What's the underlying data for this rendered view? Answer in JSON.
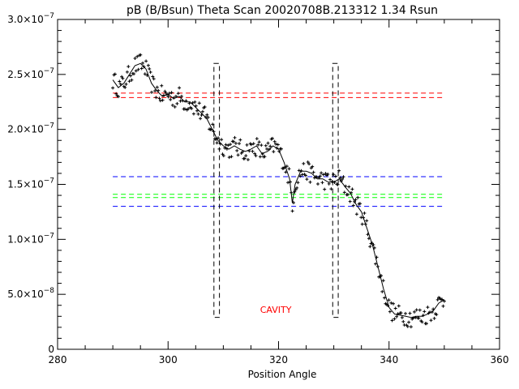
{
  "chart_data": {
    "type": "scatter",
    "title": "pB (B/Bsun) Theta Scan 20020708B.213312 1.34 Rsun",
    "xlabel": "Position Angle",
    "ylabel": "",
    "xlim": [
      280,
      360
    ],
    "ylim": [
      0,
      3e-07
    ],
    "x_ticks": [
      280,
      300,
      320,
      340,
      360
    ],
    "x_tick_labels": [
      "280",
      "300",
      "320",
      "340",
      "360"
    ],
    "y_ticks": [
      0,
      5e-08,
      1e-07,
      1.5e-07,
      2e-07,
      2.5e-07,
      3e-07
    ],
    "y_tick_labels": [
      {
        "mantissa": "0",
        "exponent": ""
      },
      {
        "mantissa": "5.0×10",
        "exponent": "−8"
      },
      {
        "mantissa": "1.0×10",
        "exponent": "−7"
      },
      {
        "mantissa": "1.5×10",
        "exponent": "−7"
      },
      {
        "mantissa": "2.0×10",
        "exponent": "−7"
      },
      {
        "mantissa": "2.5×10",
        "exponent": "−7"
      },
      {
        "mantissa": "3.0×10",
        "exponent": "−7"
      }
    ],
    "smooth_curve": {
      "x": [
        290,
        291,
        292,
        293,
        294,
        295,
        296,
        297,
        298,
        299,
        300,
        301,
        302,
        303,
        304,
        305,
        306,
        307,
        308,
        309,
        310,
        311,
        312,
        313,
        314,
        315,
        316,
        317,
        318,
        319,
        320,
        321,
        322,
        322.5,
        323,
        324,
        325,
        326,
        327,
        328,
        329,
        330,
        331,
        332,
        333,
        334,
        335,
        336,
        337,
        338,
        339,
        340,
        341,
        342,
        343,
        344,
        345,
        346,
        347,
        348,
        349,
        350
      ],
      "y": [
        2.45e-07,
        2.38e-07,
        2.42e-07,
        2.5e-07,
        2.58e-07,
        2.6e-07,
        2.55e-07,
        2.42e-07,
        2.35e-07,
        2.3e-07,
        2.32e-07,
        2.28e-07,
        2.3e-07,
        2.25e-07,
        2.25e-07,
        2.2e-07,
        2.15e-07,
        2.1e-07,
        2e-07,
        1.9e-07,
        1.85e-07,
        1.82e-07,
        1.85e-07,
        1.82e-07,
        1.8e-07,
        1.82e-07,
        1.85e-07,
        1.78e-07,
        1.8e-07,
        1.85e-07,
        1.82e-07,
        1.7e-07,
        1.55e-07,
        1.33e-07,
        1.5e-07,
        1.62e-07,
        1.62e-07,
        1.6e-07,
        1.55e-07,
        1.55e-07,
        1.52e-07,
        1.52e-07,
        1.55e-07,
        1.48e-07,
        1.42e-07,
        1.32e-07,
        1.25e-07,
        1.1e-07,
        9.5e-08,
        7.5e-08,
        5.5e-08,
        3.8e-08,
        3.2e-08,
        3.1e-08,
        3e-08,
        2.9e-08,
        3e-08,
        3e-08,
        3.2e-08,
        3.5e-08,
        4.2e-08,
        4.5e-08
      ]
    },
    "reference_lines": [
      {
        "color": "#ff0000",
        "y": 2.33e-07,
        "x_range": [
          290,
          350
        ],
        "style": "dashed"
      },
      {
        "color": "#ff0000",
        "y": 2.29e-07,
        "x_range": [
          290,
          350
        ],
        "style": "dashed"
      },
      {
        "color": "#0000ff",
        "y": 1.57e-07,
        "x_range": [
          290,
          350
        ],
        "style": "dashed"
      },
      {
        "color": "#00ff00",
        "y": 1.41e-07,
        "x_range": [
          290,
          350
        ],
        "style": "dashed"
      },
      {
        "color": "#00ff00",
        "y": 1.38e-07,
        "x_range": [
          290,
          350
        ],
        "style": "dashed"
      },
      {
        "color": "#0000ff",
        "y": 1.3e-07,
        "x_range": [
          290,
          350
        ],
        "style": "dashed"
      }
    ],
    "boundary_boxes": [
      {
        "x_range": [
          308.3,
          309.3
        ],
        "y_range": [
          2.9e-08,
          2.6e-07
        ],
        "color": "#000000",
        "style": "dashed"
      },
      {
        "x_range": [
          329.8,
          330.8
        ],
        "y_range": [
          2.9e-08,
          2.6e-07
        ],
        "color": "#000000",
        "style": "dashed"
      }
    ],
    "annotations": [
      {
        "text": "CAVITY",
        "x": 319.5,
        "y": 3.3e-08,
        "color": "#ff0000"
      }
    ],
    "scatter_spread": 9e-09,
    "scatter_count": 300,
    "point_color": "#000000",
    "line_color": "#000000",
    "grid": false
  }
}
